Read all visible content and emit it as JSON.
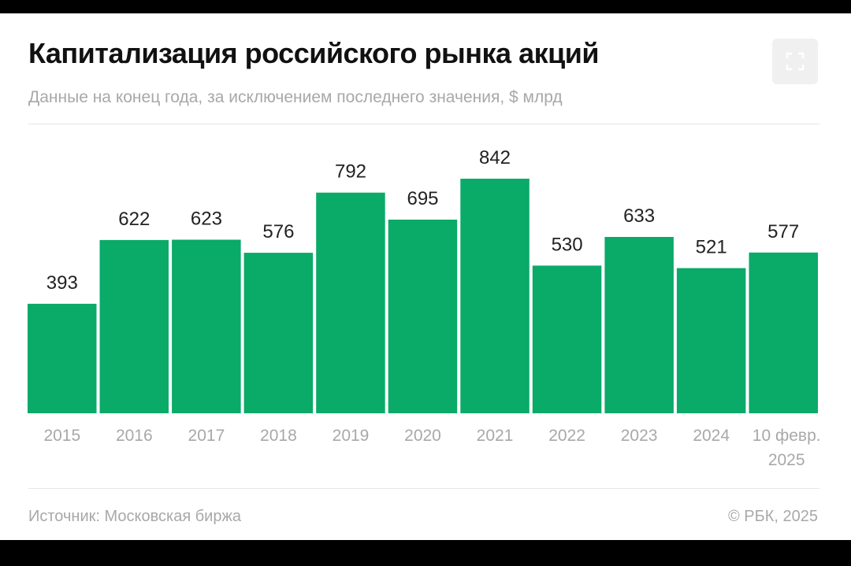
{
  "header": {
    "title": "Капитализация российского рынка акций",
    "subtitle": "Данные на конец года, за исключением последнего значения, $ млрд"
  },
  "footer": {
    "source": "Источник: Московская биржа",
    "credit": "© РБК, 2025"
  },
  "icons": {
    "expand": "expand-icon"
  },
  "colors": {
    "bar": "#0aaa68",
    "value_label": "#222222",
    "tick_label": "#a8a8a8"
  },
  "chart_data": {
    "type": "bar",
    "title": "Капитализация российского рынка акций",
    "subtitle": "Данные на конец года, за исключением последнего значения, $ млрд",
    "categories": [
      [
        "2015"
      ],
      [
        "2016"
      ],
      [
        "2017"
      ],
      [
        "2018"
      ],
      [
        "2019"
      ],
      [
        "2020"
      ],
      [
        "2021"
      ],
      [
        "2022"
      ],
      [
        "2023"
      ],
      [
        "2024"
      ],
      [
        "10 февр.",
        "2025"
      ]
    ],
    "values": [
      393,
      622,
      623,
      576,
      792,
      695,
      842,
      530,
      633,
      521,
      577
    ],
    "data_labels": true,
    "xlabel": "",
    "ylabel": "",
    "ylim": [
      0,
      842
    ],
    "grid": false,
    "legend": "none"
  }
}
